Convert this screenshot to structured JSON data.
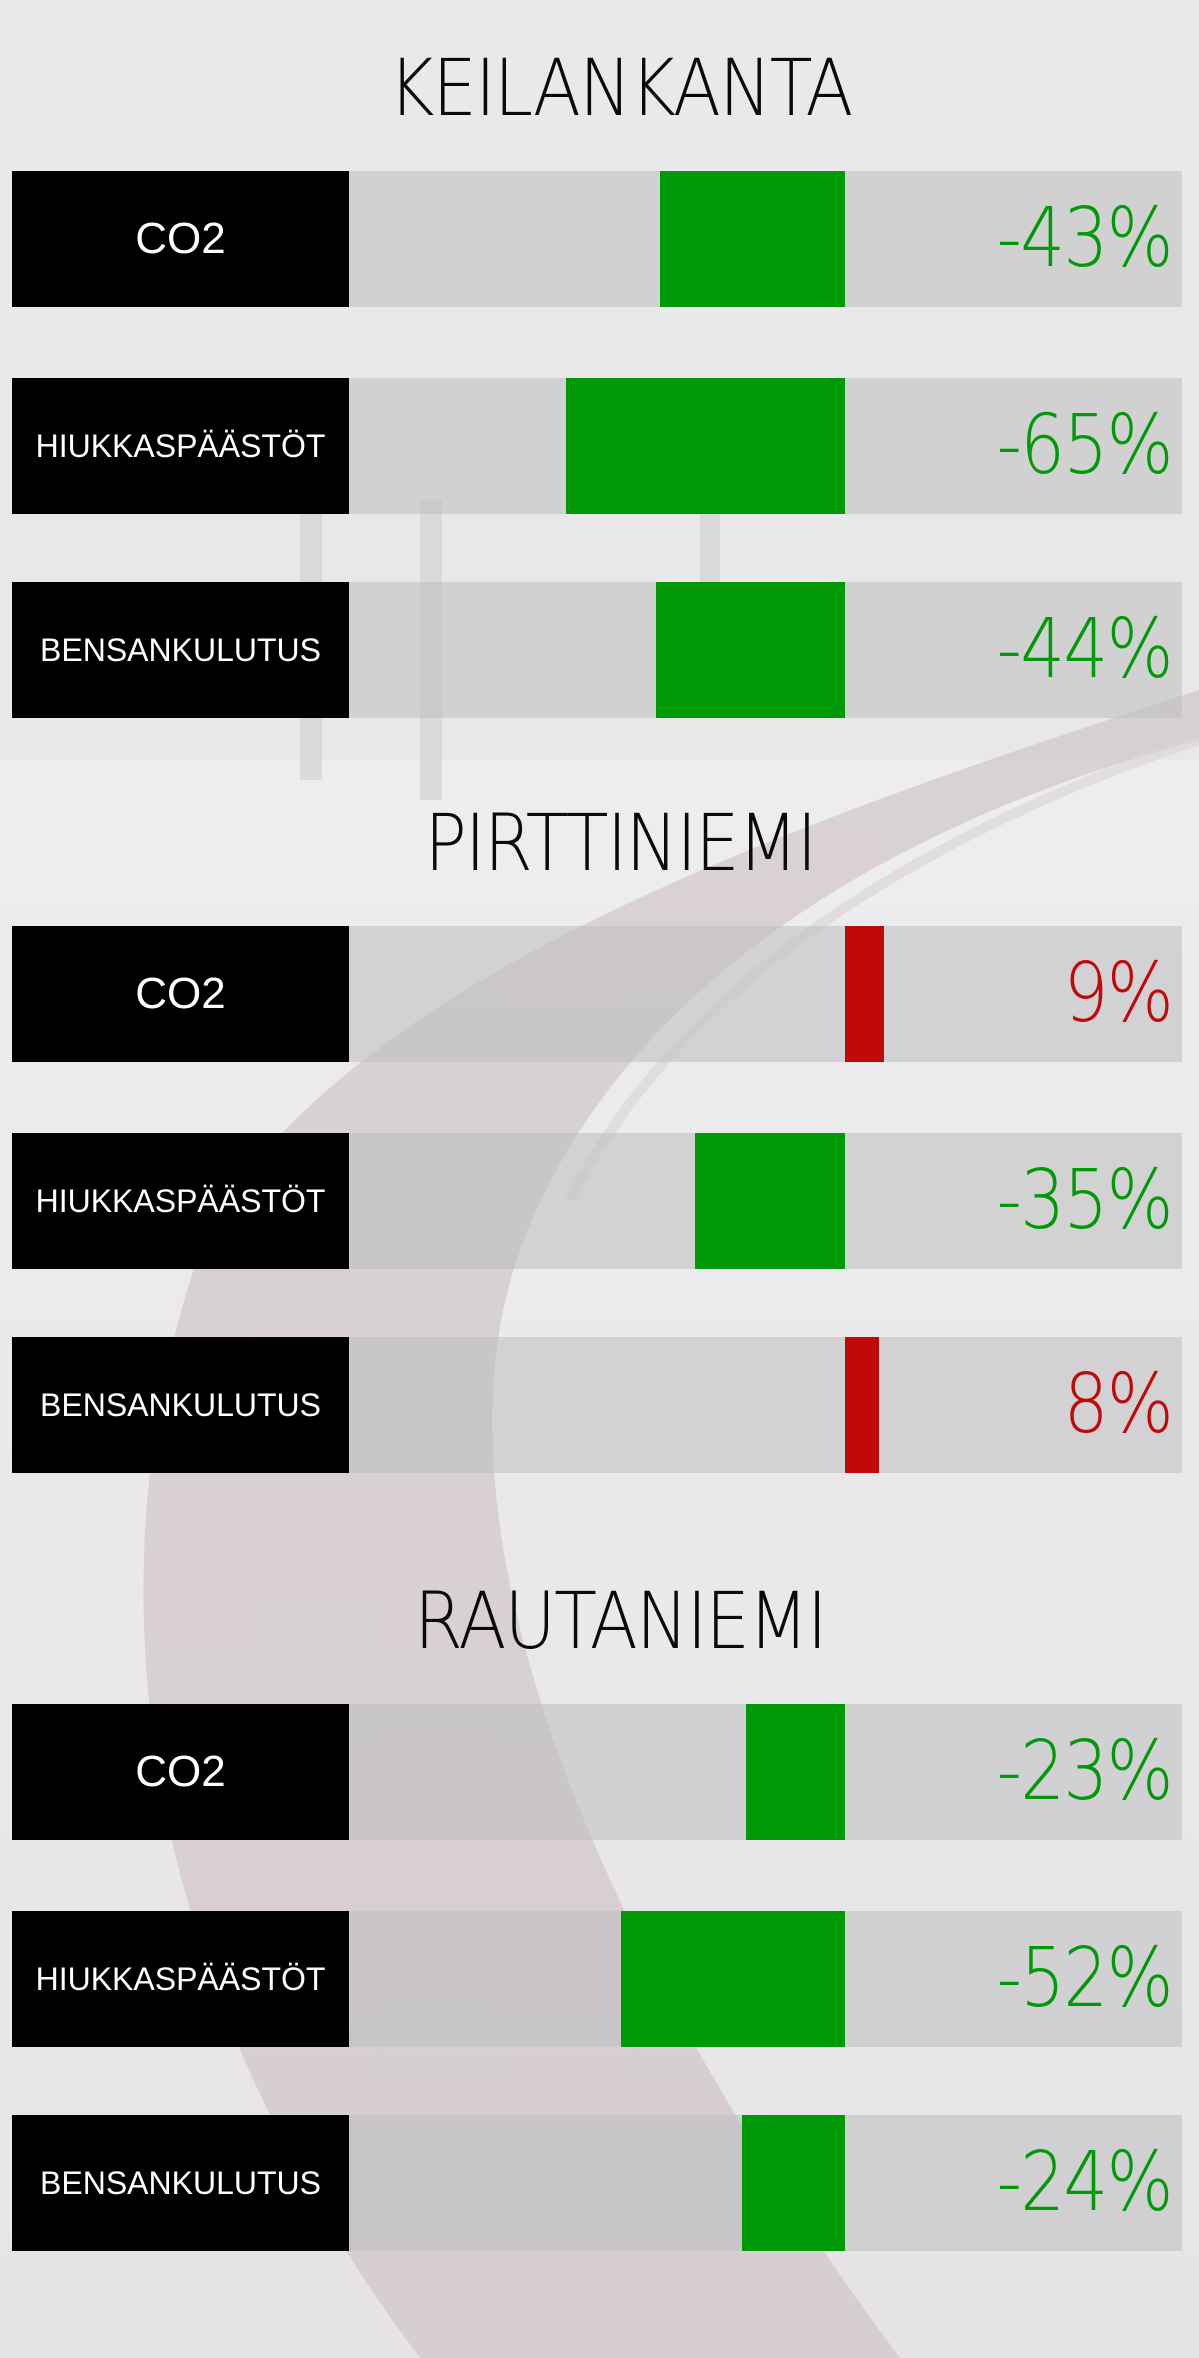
{
  "colors": {
    "decrease": "#009a08",
    "increase": "#c00a0a",
    "label_bg": "#000000",
    "track": "#bdbdbf"
  },
  "chart_data": [
    {
      "type": "bar",
      "title": "KEILANKANTA",
      "categories": [
        "CO2",
        "HIUKKASPÄÄSTÖT",
        "BENSANKULUTUS"
      ],
      "values": [
        -43,
        -65,
        -44
      ],
      "labels": [
        "-43%",
        "-65%",
        "-44%"
      ],
      "unit": "%"
    },
    {
      "type": "bar",
      "title": "PIRTTINIEMI",
      "categories": [
        "CO2",
        "HIUKKASPÄÄSTÖT",
        "BENSANKULUTUS"
      ],
      "values": [
        9,
        -35,
        8
      ],
      "labels": [
        "9%",
        "-35%",
        "8%"
      ],
      "unit": "%"
    },
    {
      "type": "bar",
      "title": "RAUTANIEMI",
      "categories": [
        "CO2",
        "HIUKKASPÄÄSTÖT",
        "BENSANKULUTUS"
      ],
      "values": [
        -23,
        -52,
        -24
      ],
      "labels": [
        "-23%",
        "-52%",
        "-24%"
      ],
      "unit": "%"
    }
  ]
}
